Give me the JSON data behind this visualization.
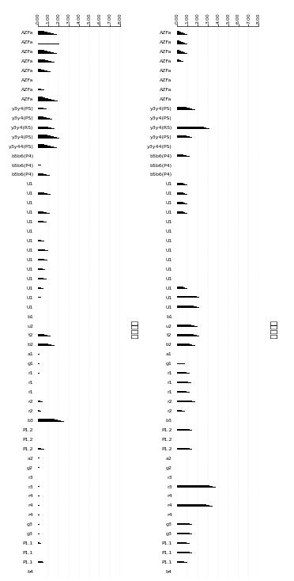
{
  "labels": [
    "AZFa",
    "AZFa",
    "AZFa",
    "AZFa",
    "AZFa",
    "AZFa",
    "AZFa",
    "AZFa",
    "y3y4(PS)",
    "y3y4(PS)",
    "y3y4(RS)",
    "y3y4(PS)",
    "y3y44(PS)",
    "b5b6(P4)",
    "b5b6(P4)",
    "b5b6(P4)",
    "U1",
    "U1",
    "U1",
    "U1",
    "U1",
    "U1",
    "U1",
    "U1",
    "U1",
    "U1",
    "U1",
    "U1",
    "U1",
    "U1",
    "b1",
    "u2",
    "t2",
    "b2",
    "a1",
    "g1",
    "r1",
    "r1",
    "r1",
    "r2",
    "r2",
    "b3",
    "P1.2",
    "P1.2",
    "P1.2",
    "a2",
    "g2",
    "r3",
    "r3",
    "r4",
    "r4",
    "r4",
    "g3",
    "g3",
    "P1.1",
    "P1.1",
    "P1.1",
    "b4"
  ],
  "left_values": [
    [
      1.8,
      1.5,
      1.2,
      0.9,
      0.6
    ],
    [
      2.1,
      1.8,
      1.5,
      1.2,
      0.9,
      0.6
    ],
    [
      1.8,
      1.5,
      1.2,
      0.9,
      0.6
    ],
    [
      1.6,
      1.3,
      1.0,
      0.7
    ],
    [
      1.2,
      0.9,
      0.6,
      0.3
    ],
    [
      0.9,
      0.6,
      0.3
    ],
    [
      0.6,
      0.3
    ],
    [
      1.9,
      1.6,
      1.3,
      1.0,
      0.7,
      0.4
    ],
    [
      0.8,
      0.5
    ],
    [
      1.4,
      1.1,
      0.8,
      0.5
    ],
    [
      1.6,
      1.3,
      1.0,
      0.7,
      0.4
    ],
    [
      2.1,
      1.8,
      1.5,
      1.2,
      0.9
    ],
    [
      1.8,
      1.5,
      1.2,
      0.9,
      0.6
    ],
    [
      0.5,
      0.3
    ],
    [
      0.3
    ],
    [
      1.1,
      0.8,
      0.5
    ],
    [
      0.9,
      0.6
    ],
    [
      1.2,
      0.9,
      0.6
    ],
    [
      0.7,
      0.4
    ],
    [
      1.1,
      0.8,
      0.5
    ],
    [
      0.8,
      0.5
    ],
    [
      1.3,
      1.0,
      0.7
    ],
    [
      0.6,
      0.3
    ],
    [
      1.0,
      0.7
    ],
    [
      0.9,
      0.6
    ],
    [
      0.7,
      0.4
    ],
    [
      0.8,
      0.5
    ],
    [
      0.5,
      0.3
    ],
    [
      0.3
    ],
    [
      0.8,
      0.5
    ],
    [
      1.5,
      1.2,
      0.9,
      0.6
    ],
    [
      1.8,
      1.5,
      1.2,
      0.9
    ],
    [
      1.2,
      0.9,
      0.6
    ],
    [
      1.6,
      1.3,
      1.0
    ],
    [
      0.15
    ],
    [
      0.1
    ],
    [
      0.1
    ],
    [
      0.1
    ],
    [
      0.05
    ],
    [
      0.4,
      0.2
    ],
    [
      0.25,
      0.12
    ],
    [
      2.5,
      2.2,
      1.9,
      1.6
    ],
    [
      0.15
    ],
    [
      1.8,
      1.5,
      1.2
    ],
    [
      0.6,
      0.3
    ],
    [
      0.1
    ],
    [
      0.1
    ],
    [
      0.25,
      0.12
    ],
    [
      0.1
    ],
    [
      0.1
    ],
    [
      0.1
    ],
    [
      0.1
    ],
    [
      0.1
    ],
    [
      0.1
    ],
    [
      0.25,
      0.12
    ],
    [
      1.5,
      1.2,
      0.9
    ],
    [
      0.55,
      0.4
    ],
    [
      1.8,
      1.5,
      1.2
    ]
  ],
  "right_values": [
    [
      1.0,
      0.8,
      0.6,
      0.4,
      0.2
    ],
    [
      1.0,
      0.8,
      0.6,
      0.4,
      0.2
    ],
    [
      1.0,
      0.8,
      0.6,
      0.4,
      0.2
    ],
    [
      1.0,
      0.8,
      0.6,
      0.4,
      0.2
    ],
    [
      1.0,
      0.8,
      0.6,
      0.4,
      0.2
    ],
    [
      1.0,
      0.8,
      0.6,
      0.4,
      0.2
    ],
    [
      1.0,
      0.8,
      0.6,
      0.4,
      0.2
    ],
    [
      1.0,
      0.8,
      0.6,
      0.4,
      0.2
    ],
    [
      1.8,
      1.5,
      1.2,
      0.9
    ],
    [
      1.4,
      1.1,
      0.8
    ],
    [
      3.2,
      2.9,
      2.6,
      2.3,
      2.0
    ],
    [
      1.5,
      1.2,
      0.9
    ],
    [
      1.8,
      1.5,
      1.2,
      0.9
    ],
    [
      1.2,
      0.9,
      0.6
    ],
    [
      1.0,
      0.7
    ],
    [
      0.8,
      0.5
    ],
    [
      1.0,
      0.8,
      0.6
    ],
    [
      1.0,
      0.8,
      0.6
    ],
    [
      1.0,
      0.8,
      0.6
    ],
    [
      1.0,
      0.8,
      0.6
    ],
    [
      1.0,
      0.8,
      0.6
    ],
    [
      1.0,
      0.8,
      0.6
    ],
    [
      1.0,
      0.8,
      0.6
    ],
    [
      1.0,
      0.8,
      0.6
    ],
    [
      1.0,
      0.8,
      0.6
    ],
    [
      1.0,
      0.8,
      0.6
    ],
    [
      1.0,
      0.8,
      0.6
    ],
    [
      1.0,
      0.8,
      0.6
    ],
    [
      2.8,
      2.5,
      2.2,
      1.9
    ],
    [
      2.2,
      1.9,
      1.6
    ],
    [
      2.5,
      2.2,
      1.9,
      1.6
    ],
    [
      2.0,
      1.7,
      1.4
    ],
    [
      2.2,
      1.9,
      1.6
    ],
    [
      1.8,
      1.5,
      1.2
    ],
    [
      0.8,
      0.5
    ],
    [
      0.8,
      0.5
    ],
    [
      1.2,
      0.9
    ],
    [
      1.4,
      1.1
    ],
    [
      1.2,
      0.9
    ],
    [
      1.8,
      1.5
    ],
    [
      0.8,
      0.5
    ],
    [
      1.5,
      1.2,
      0.9
    ],
    [
      1.5,
      1.2
    ],
    [
      2.2,
      1.9,
      1.6
    ],
    [
      1.5,
      1.2
    ],
    [
      2.0,
      1.7
    ],
    [
      2.0,
      1.7
    ],
    [
      1.5,
      1.2
    ],
    [
      3.8,
      3.5,
      3.2
    ],
    [
      2.5,
      2.2
    ],
    [
      3.5,
      3.2,
      2.9
    ],
    [
      2.2,
      1.9
    ],
    [
      1.5,
      1.2
    ],
    [
      1.5,
      1.2
    ],
    [
      1.2,
      0.9
    ],
    [
      1.5,
      1.2
    ],
    [
      1.0,
      0.7
    ],
    [
      1.8,
      1.5,
      1.2
    ]
  ],
  "xlim_left": [
    0,
    8
  ],
  "xlim_right": [
    0,
    8
  ],
  "xticks": [
    0,
    1,
    2,
    3,
    4,
    5,
    6,
    7,
    8
  ],
  "left_title": "正常参考",
  "right_title": "删除参考",
  "bar_color": "#000000",
  "bg_color": "#ffffff",
  "label_fontsize": 4.5,
  "tick_fontsize": 4.5
}
